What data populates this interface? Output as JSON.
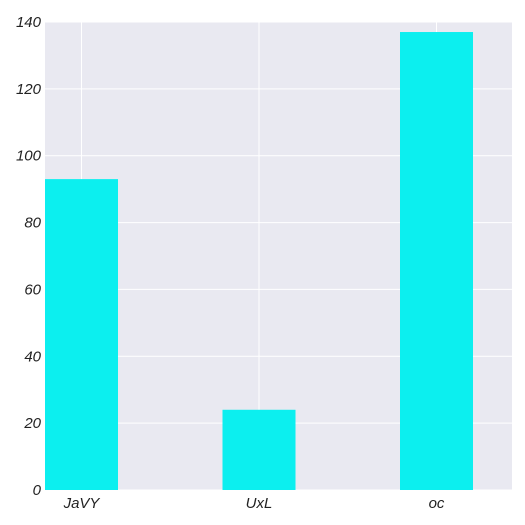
{
  "chart_data": {
    "type": "bar",
    "categories": [
      "JaVY",
      "UxL",
      "oc"
    ],
    "values": [
      93,
      24,
      137
    ],
    "ylim": [
      0,
      140
    ],
    "yticks": [
      0,
      20,
      40,
      60,
      80,
      100,
      120,
      140
    ],
    "grid": true,
    "title": "",
    "xlabel": "",
    "ylabel": ""
  },
  "colors": {
    "bar": "#0cefef",
    "plot_background": "#e9e9f1",
    "grid": "#ffffff",
    "page_background": "#ffffff"
  }
}
